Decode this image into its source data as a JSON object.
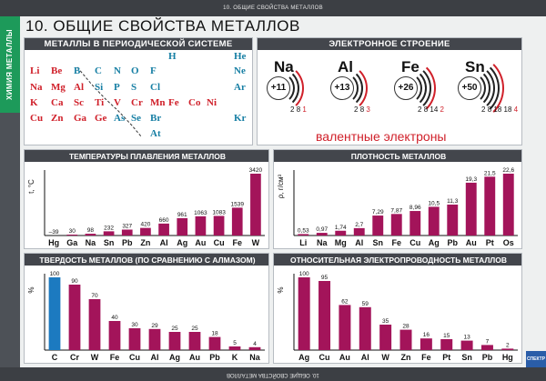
{
  "header": {
    "top_strip": "10. ОБЩИЕ СВОЙСТВА МЕТАЛЛОВ",
    "bottom_strip": "10. ОБЩИЕ СВОЙСТВА МЕТАЛЛОВ",
    "side_tab": "ХИМИЯ МЕТАЛЛЫ",
    "title": "10. ОБЩИЕ  СВОЙСТВА  МЕТАЛЛОВ"
  },
  "periodic": {
    "heading": "МЕТАЛЛЫ В ПЕРИОДИЧЕСКОЙ СИСТЕМЕ",
    "cells": [
      {
        "t": "H",
        "c": "n"
      },
      {
        "t": "He",
        "c": "n"
      },
      {
        "t": "Li",
        "c": "m"
      },
      {
        "t": "Be",
        "c": "m"
      },
      {
        "t": "B",
        "c": "n"
      },
      {
        "t": "C",
        "c": "n"
      },
      {
        "t": "N",
        "c": "n"
      },
      {
        "t": "O",
        "c": "n"
      },
      {
        "t": "F",
        "c": "n"
      },
      {
        "t": "Ne",
        "c": "n"
      },
      {
        "t": "Na",
        "c": "m"
      },
      {
        "t": "Mg",
        "c": "m"
      },
      {
        "t": "Al",
        "c": "m"
      },
      {
        "t": "Si",
        "c": "n"
      },
      {
        "t": "P",
        "c": "n"
      },
      {
        "t": "S",
        "c": "n"
      },
      {
        "t": "Cl",
        "c": "n"
      },
      {
        "t": "Ar",
        "c": "n"
      },
      {
        "t": "K",
        "c": "m"
      },
      {
        "t": "Ca",
        "c": "m"
      },
      {
        "t": "Sc",
        "c": "m"
      },
      {
        "t": "Ti",
        "c": "m"
      },
      {
        "t": "V",
        "c": "m"
      },
      {
        "t": "Cr",
        "c": "m"
      },
      {
        "t": "Mn",
        "c": "m"
      },
      {
        "t": "Fe",
        "c": "m"
      },
      {
        "t": "Co",
        "c": "m"
      },
      {
        "t": "Ni",
        "c": "m"
      },
      {
        "t": "Cu",
        "c": "m"
      },
      {
        "t": "Zn",
        "c": "m"
      },
      {
        "t": "Ga",
        "c": "m"
      },
      {
        "t": "Ge",
        "c": "m"
      },
      {
        "t": "As",
        "c": "n"
      },
      {
        "t": "Se",
        "c": "n"
      },
      {
        "t": "Br",
        "c": "n"
      },
      {
        "t": "Kr",
        "c": "n"
      },
      {
        "t": "At",
        "c": "n"
      }
    ]
  },
  "electronic": {
    "heading": "ЭЛЕКТРОННОЕ  СТРОЕНИЕ",
    "valence_label": "валентные  электроны",
    "atoms": [
      {
        "symbol": "Na",
        "charge": "+11",
        "shells": [
          "2",
          "8"
        ],
        "valence": "1"
      },
      {
        "symbol": "Al",
        "charge": "+13",
        "shells": [
          "2",
          "8"
        ],
        "valence": "3"
      },
      {
        "symbol": "Fe",
        "charge": "+26",
        "shells": [
          "2",
          "8",
          "14"
        ],
        "valence": "2"
      },
      {
        "symbol": "Sn",
        "charge": "+50",
        "shells": [
          "2",
          "8",
          "18",
          "18"
        ],
        "valence": "4"
      }
    ]
  },
  "colors": {
    "bar": "#a3145a",
    "highlight": "#1c7ac0",
    "panel_head": "#43464c",
    "tab": "#1d9a5a"
  },
  "chart_data": [
    {
      "type": "bar",
      "title": "ТЕМПЕРАТУРЫ ПЛАВЛЕНИЯ МЕТАЛЛОВ",
      "ylabel": "t, °С",
      "categories": [
        "Hg",
        "Ga",
        "Na",
        "Sn",
        "Pb",
        "Zn",
        "Al",
        "Ag",
        "Au",
        "Cu",
        "Fe",
        "W"
      ],
      "values": [
        -39,
        30,
        98,
        232,
        327,
        420,
        660,
        961,
        1063,
        1083,
        1539,
        3420
      ],
      "labels": [
        "–39",
        "30",
        "98",
        "232",
        "327",
        "420",
        "660",
        "961",
        "1063",
        "1083",
        "1539",
        "3420"
      ],
      "ylim": [
        -39,
        3420
      ]
    },
    {
      "type": "bar",
      "title": "ПЛОТНОСТЬ МЕТАЛЛОВ",
      "ylabel": "ρ, г/см³",
      "categories": [
        "Li",
        "Na",
        "Mg",
        "Al",
        "Sn",
        "Fe",
        "Cu",
        "Ag",
        "Pb",
        "Au",
        "Pt",
        "Os"
      ],
      "values": [
        0.53,
        0.97,
        1.74,
        2.7,
        7.29,
        7.87,
        8.96,
        10.5,
        11.3,
        19.3,
        21.5,
        22.6
      ],
      "labels": [
        "0,53",
        "0,97",
        "1,74",
        "2,7",
        "7,29",
        "7,87",
        "8,96",
        "10,5",
        "11,3",
        "19,3",
        "21,5",
        "22,6"
      ],
      "ylim": [
        0,
        22.6
      ]
    },
    {
      "type": "bar",
      "title": "ТВЕРДОСТЬ МЕТАЛЛОВ (ПО СРАВНЕНИЮ С АЛМАЗОМ)",
      "ylabel": "%",
      "categories": [
        "C",
        "Cr",
        "W",
        "Fe",
        "Cu",
        "Al",
        "Ag",
        "Au",
        "Pb",
        "K",
        "Na"
      ],
      "values": [
        100,
        90,
        70,
        40,
        30,
        29,
        25,
        25,
        18,
        5,
        4
      ],
      "labels": [
        "100",
        "90",
        "70",
        "40",
        "30",
        "29",
        "25",
        "25",
        "18",
        "5",
        "4"
      ],
      "highlight_first": true,
      "ylim": [
        0,
        100
      ]
    },
    {
      "type": "bar",
      "title": "ОТНОСИТЕЛЬНАЯ ЭЛЕКТРОПРОВОДНОСТЬ МЕТАЛЛОВ",
      "ylabel": "%",
      "categories": [
        "Ag",
        "Cu",
        "Au",
        "Al",
        "W",
        "Zn",
        "Fe",
        "Pt",
        "Sn",
        "Pb",
        "Hg"
      ],
      "values": [
        100,
        95,
        62,
        59,
        35,
        28,
        16,
        15,
        13,
        7,
        2
      ],
      "labels": [
        "100",
        "95",
        "62",
        "59",
        "35",
        "28",
        "16",
        "15",
        "13",
        "7",
        "2"
      ],
      "ylim": [
        0,
        100
      ]
    }
  ],
  "logo": "СПЕКТР"
}
